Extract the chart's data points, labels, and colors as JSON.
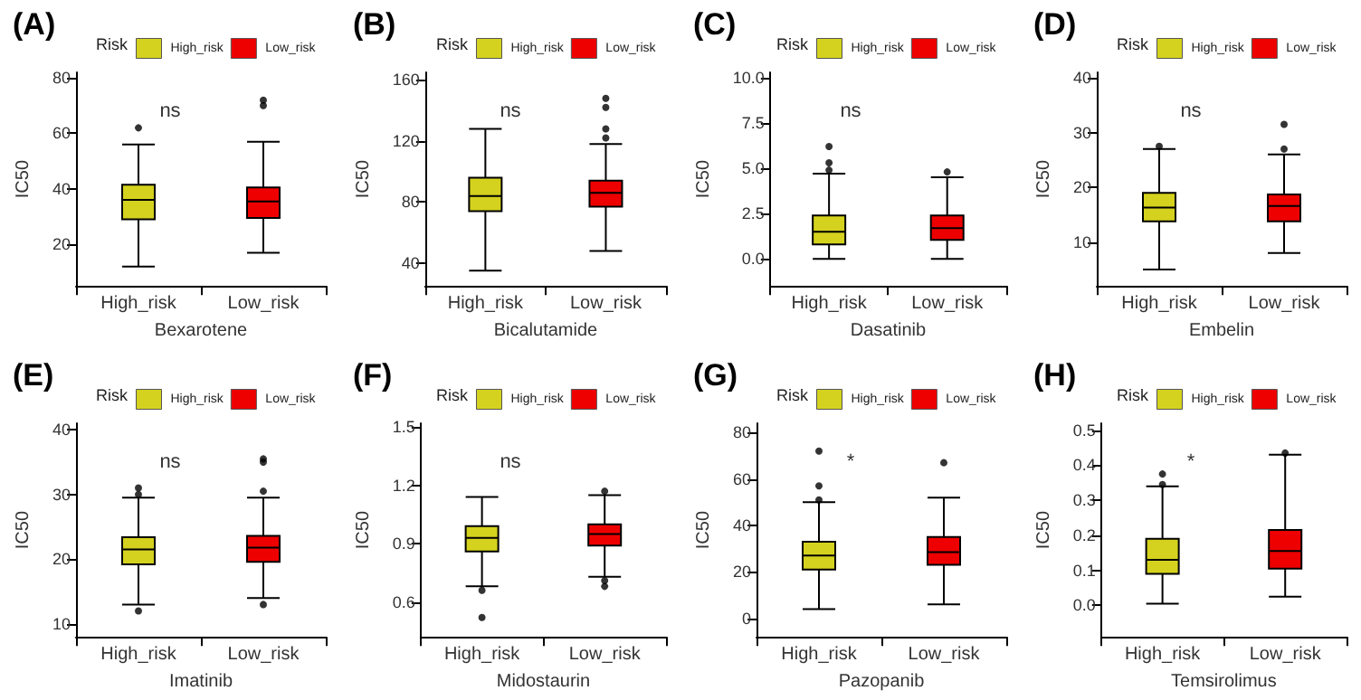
{
  "chart_data": [
    {
      "type": "box",
      "title": "(A)",
      "xlabel": "Bexarotene",
      "ylabel": "IC50",
      "legend_title": "Risk",
      "legend": "top",
      "grid": false,
      "annotations": [
        "ns"
      ],
      "categories": [
        "High_risk",
        "Low_risk"
      ],
      "ylim": [
        5,
        82
      ],
      "yticks": [
        20,
        40,
        60,
        80
      ],
      "series": [
        {
          "name": "High_risk",
          "color": "#d4d21e",
          "boxes": [
            {
              "low": 12,
              "q1": 29,
              "median": 36,
              "q3": 41.5,
              "high": 56,
              "outliers": [
                62
              ]
            },
            null
          ]
        },
        {
          "name": "Low_risk",
          "color": "#ee0000",
          "boxes": [
            null,
            {
              "low": 17,
              "q1": 29.5,
              "median": 35.5,
              "q3": 40.5,
              "high": 57,
              "outliers": [
                70,
                72
              ]
            }
          ]
        }
      ]
    },
    {
      "type": "box",
      "title": "(B)",
      "xlabel": "Bicalutamide",
      "ylabel": "IC50",
      "legend_title": "Risk",
      "legend": "top",
      "grid": false,
      "annotations": [
        "ns"
      ],
      "categories": [
        "High_risk",
        "Low_risk"
      ],
      "ylim": [
        25,
        165
      ],
      "yticks": [
        40,
        80,
        120,
        160
      ],
      "series": [
        {
          "name": "High_risk",
          "color": "#d4d21e",
          "boxes": [
            {
              "low": 35,
              "q1": 74,
              "median": 84,
              "q3": 96,
              "high": 128
            },
            null
          ]
        },
        {
          "name": "Low_risk",
          "color": "#ee0000",
          "boxes": [
            null,
            {
              "low": 48,
              "q1": 77,
              "median": 86,
              "q3": 94,
              "high": 118,
              "outliers": [
                122,
                128,
                142,
                148
              ]
            }
          ]
        }
      ]
    },
    {
      "type": "box",
      "title": "(C)",
      "xlabel": "Dasatinib",
      "ylabel": "IC50",
      "legend_title": "Risk",
      "legend": "top",
      "grid": false,
      "annotations": [
        "ns"
      ],
      "categories": [
        "High_risk",
        "Low_risk"
      ],
      "ylim": [
        -1.5,
        10.3
      ],
      "yticks": [
        {
          "value": 0,
          "label": "0.0"
        },
        2.5,
        {
          "value": 5,
          "label": "5.0"
        },
        7.5,
        {
          "value": 10,
          "label": "10.0"
        }
      ],
      "series": [
        {
          "name": "High_risk",
          "color": "#d4d21e",
          "boxes": [
            {
              "low": 0,
              "q1": 0.8,
              "median": 1.5,
              "q3": 2.4,
              "high": 4.7,
              "outliers": [
                4.9,
                5.3,
                6.2
              ]
            },
            null
          ]
        },
        {
          "name": "Low_risk",
          "color": "#ee0000",
          "boxes": [
            null,
            {
              "low": 0,
              "q1": 1.05,
              "median": 1.7,
              "q3": 2.4,
              "high": 4.5,
              "outliers": [
                4.8
              ]
            }
          ]
        }
      ]
    },
    {
      "type": "box",
      "title": "(D)",
      "xlabel": "Embelin",
      "ylabel": "IC50",
      "legend_title": "Risk",
      "legend": "top",
      "grid": false,
      "annotations": [
        "ns"
      ],
      "categories": [
        "High_risk",
        "Low_risk"
      ],
      "ylim": [
        2,
        41
      ],
      "yticks": [
        10,
        20,
        30,
        40
      ],
      "series": [
        {
          "name": "High_risk",
          "color": "#d4d21e",
          "boxes": [
            {
              "low": 5,
              "q1": 13.8,
              "median": 16.3,
              "q3": 19,
              "high": 27,
              "outliers": [
                27.5
              ]
            },
            null
          ]
        },
        {
          "name": "Low_risk",
          "color": "#ee0000",
          "boxes": [
            null,
            {
              "low": 8,
              "q1": 13.8,
              "median": 16.6,
              "q3": 18.7,
              "high": 26,
              "outliers": [
                27,
                31.5
              ]
            }
          ]
        }
      ]
    },
    {
      "type": "box",
      "title": "(E)",
      "xlabel": "Imatinib",
      "ylabel": "IC50",
      "legend_title": "Risk",
      "legend": "top",
      "grid": false,
      "annotations": [
        "ns"
      ],
      "categories": [
        "High_risk",
        "Low_risk"
      ],
      "ylim": [
        8,
        41
      ],
      "yticks": [
        10,
        20,
        30,
        40
      ],
      "series": [
        {
          "name": "High_risk",
          "color": "#d4d21e",
          "boxes": [
            {
              "low": 13,
              "q1": 19.2,
              "median": 21.5,
              "q3": 23.4,
              "high": 29.5,
              "outliers": [
                12,
                30,
                31
              ]
            },
            null
          ]
        },
        {
          "name": "Low_risk",
          "color": "#ee0000",
          "boxes": [
            null,
            {
              "low": 14,
              "q1": 19.6,
              "median": 21.8,
              "q3": 23.6,
              "high": 29.5,
              "outliers": [
                13,
                30.5,
                35,
                35.5
              ]
            }
          ]
        }
      ]
    },
    {
      "type": "box",
      "title": "(F)",
      "xlabel": "Midostaurin",
      "ylabel": "IC50",
      "legend_title": "Risk",
      "legend": "top",
      "grid": false,
      "annotations": [
        "ns"
      ],
      "categories": [
        "High_risk",
        "Low_risk"
      ],
      "ylim": [
        0.42,
        1.52
      ],
      "yticks": [
        0.6,
        0.9,
        1.2,
        1.5
      ],
      "series": [
        {
          "name": "High_risk",
          "color": "#d4d21e",
          "boxes": [
            {
              "low": 0.68,
              "q1": 0.86,
              "median": 0.93,
              "q3": 0.99,
              "high": 1.14,
              "outliers": [
                0.66,
                0.52
              ]
            },
            null
          ]
        },
        {
          "name": "Low_risk",
          "color": "#ee0000",
          "boxes": [
            null,
            {
              "low": 0.73,
              "q1": 0.89,
              "median": 0.95,
              "q3": 1.0,
              "high": 1.15,
              "outliers": [
                0.68,
                0.71,
                1.17
              ]
            }
          ]
        }
      ]
    },
    {
      "type": "box",
      "title": "(G)",
      "xlabel": "Pazopanib",
      "ylabel": "IC50",
      "legend_title": "Risk",
      "legend": "top",
      "grid": false,
      "annotations": [
        "*"
      ],
      "categories": [
        "High_risk",
        "Low_risk"
      ],
      "ylim": [
        -8,
        84
      ],
      "yticks": [
        0,
        20,
        40,
        60,
        80
      ],
      "series": [
        {
          "name": "High_risk",
          "color": "#d4d21e",
          "boxes": [
            {
              "low": 4,
              "q1": 21,
              "median": 27,
              "q3": 33,
              "high": 50,
              "outliers": [
                51,
                57,
                72
              ]
            },
            null
          ]
        },
        {
          "name": "Low_risk",
          "color": "#ee0000",
          "boxes": [
            null,
            {
              "low": 6,
              "q1": 23,
              "median": 28.5,
              "q3": 35,
              "high": 52,
              "outliers": [
                67
              ]
            }
          ]
        }
      ]
    },
    {
      "type": "box",
      "title": "(H)",
      "xlabel": "Temsirolimus",
      "ylabel": "IC50",
      "legend_title": "Risk",
      "legend": "top",
      "grid": false,
      "annotations": [
        "*"
      ],
      "categories": [
        "High_risk",
        "Low_risk"
      ],
      "ylim": [
        -0.09,
        0.52
      ],
      "yticks": [
        {
          "value": 0,
          "label": "0.0"
        },
        0.1,
        0.2,
        0.3,
        0.4,
        0.5
      ],
      "series": [
        {
          "name": "High_risk",
          "color": "#d4d21e",
          "boxes": [
            {
              "low": 0.005,
              "q1": 0.09,
              "median": 0.13,
              "q3": 0.19,
              "high": 0.34,
              "outliers": [
                0.345,
                0.375
              ]
            },
            null
          ]
        },
        {
          "name": "Low_risk",
          "color": "#ee0000",
          "boxes": [
            null,
            {
              "low": 0.025,
              "q1": 0.105,
              "median": 0.155,
              "q3": 0.215,
              "high": 0.43,
              "outliers": [
                0.435
              ]
            }
          ]
        }
      ]
    }
  ]
}
